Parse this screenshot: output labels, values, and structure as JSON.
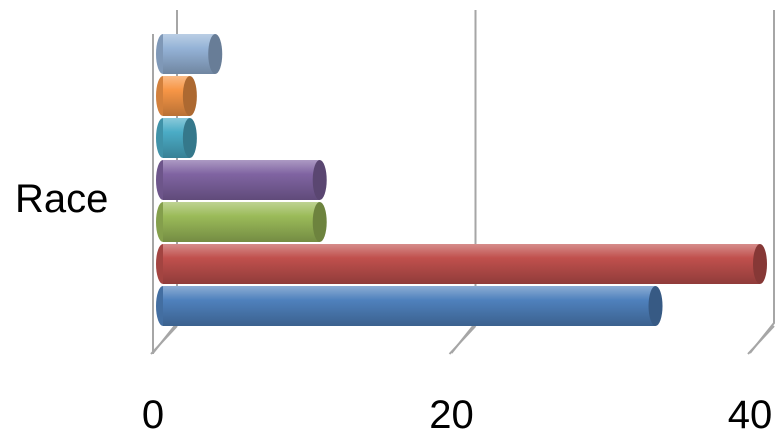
{
  "chart_data": {
    "type": "bar",
    "orientation": "horizontal",
    "style": "3d-cylinder",
    "categories": [
      "Race"
    ],
    "series": [
      {
        "values": [
          33
        ],
        "color": "#4f81bd"
      },
      {
        "values": [
          40
        ],
        "color": "#c0504d"
      },
      {
        "values": [
          10.5
        ],
        "color": "#9bbb59"
      },
      {
        "values": [
          10.5
        ],
        "color": "#8064a2"
      },
      {
        "values": [
          1.8
        ],
        "color": "#4bacc6"
      },
      {
        "values": [
          1.8
        ],
        "color": "#f79646"
      },
      {
        "values": [
          3.5
        ],
        "color": "#95b3d7"
      }
    ],
    "xlim": [
      0,
      40
    ],
    "x_ticks": [
      0,
      20,
      40
    ],
    "x_tick_labels": [
      "0",
      "20",
      "40"
    ],
    "grid": true,
    "legend": "none",
    "title": "",
    "xlabel": "",
    "ylabel": ""
  }
}
